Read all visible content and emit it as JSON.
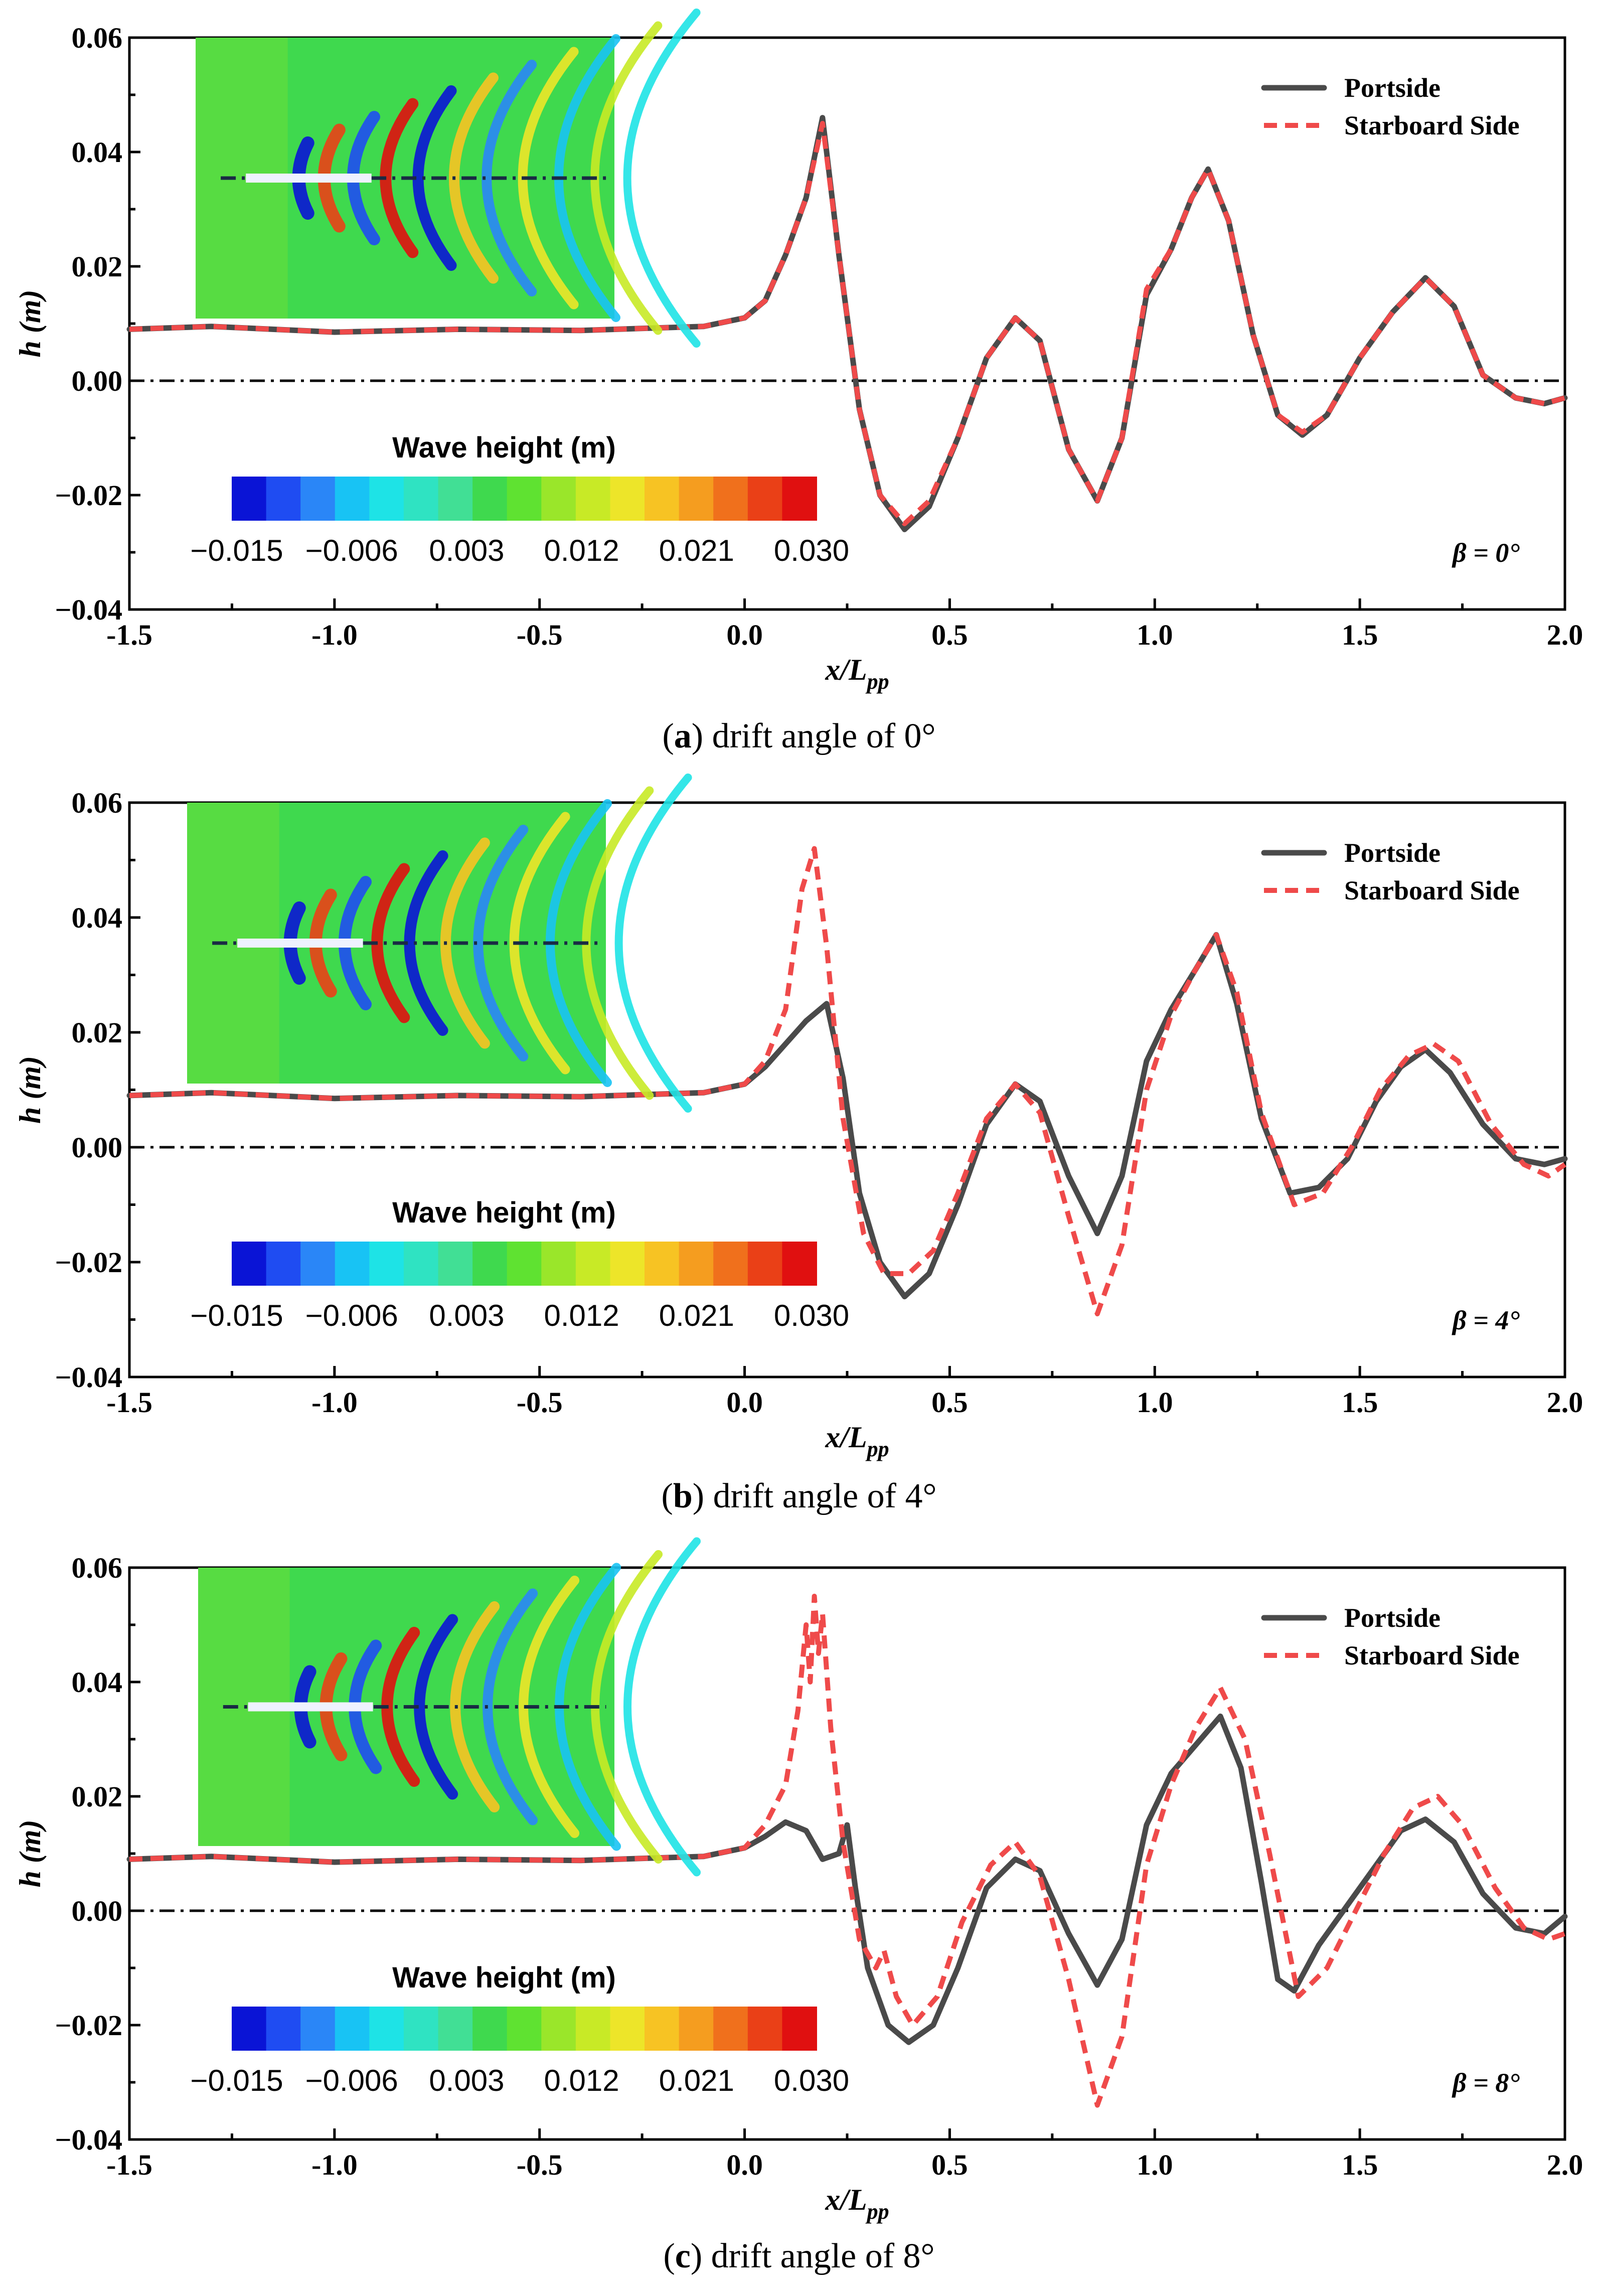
{
  "colors": {
    "portside": "#4a4a4a",
    "starboard": "#ef4a4a",
    "inset_background": "#3fd94e"
  },
  "colorbar": {
    "title": "Wave height (m)",
    "tick_labels": [
      "−0.015",
      "−0.006",
      "0.003",
      "0.012",
      "0.021",
      "0.030"
    ],
    "colors": [
      "#0a14d6",
      "#1f4cf2",
      "#2a86f7",
      "#18c3f4",
      "#1ee3e6",
      "#2fe3c2",
      "#41df95",
      "#3fd94e",
      "#5fe231",
      "#9ae62a",
      "#c8ea26",
      "#ede529",
      "#f7c323",
      "#f59d1f",
      "#f0701c",
      "#ea4017",
      "#e01010"
    ]
  },
  "chart_data": [
    {
      "type": "line",
      "panel": "a",
      "caption_letter": "a",
      "caption_text": " drift angle of 0°",
      "beta_label": "β = 0°",
      "xlabel": "x/L",
      "xlabel_sub": "pp",
      "ylabel": "h (m)",
      "xlim": [
        -1.5,
        2.0
      ],
      "ylim": [
        -0.04,
        0.06
      ],
      "xticks": [
        -1.5,
        -1.0,
        -0.5,
        0.0,
        0.5,
        1.0,
        1.5,
        2.0
      ],
      "xtick_labels": [
        "-1.5",
        "-1.0",
        "-0.5",
        "0.0",
        "0.5",
        "1.0",
        "1.5",
        "2.0"
      ],
      "yticks": [
        -0.04,
        -0.02,
        0.0,
        0.02,
        0.04,
        0.06
      ],
      "ytick_labels": [
        "−0.04",
        "−0.02",
        "0.00",
        "0.02",
        "0.04",
        "0.06"
      ],
      "legend": [
        "Portside",
        "Starboard Side"
      ],
      "series": [
        {
          "name": "Portside",
          "x": [
            -1.5,
            -1.3,
            -1.0,
            -0.7,
            -0.4,
            -0.1,
            0.0,
            0.05,
            0.1,
            0.15,
            0.19,
            0.23,
            0.28,
            0.33,
            0.39,
            0.45,
            0.52,
            0.59,
            0.66,
            0.72,
            0.79,
            0.86,
            0.92,
            0.98,
            1.04,
            1.09,
            1.13,
            1.18,
            1.24,
            1.3,
            1.36,
            1.42,
            1.5,
            1.58,
            1.66,
            1.73,
            1.8,
            1.88,
            1.95,
            2.0
          ],
          "y": [
            0.009,
            0.0095,
            0.0085,
            0.009,
            0.0088,
            0.0095,
            0.011,
            0.014,
            0.022,
            0.032,
            0.046,
            0.022,
            -0.005,
            -0.02,
            -0.026,
            -0.022,
            -0.01,
            0.004,
            0.011,
            0.007,
            -0.012,
            -0.021,
            -0.01,
            0.015,
            0.023,
            0.032,
            0.037,
            0.028,
            0.008,
            -0.006,
            -0.0095,
            -0.006,
            0.004,
            0.012,
            0.018,
            0.013,
            0.001,
            -0.003,
            -0.004,
            -0.003
          ]
        },
        {
          "name": "Starboard Side",
          "x": [
            -1.5,
            -1.3,
            -1.0,
            -0.7,
            -0.4,
            -0.1,
            0.0,
            0.05,
            0.1,
            0.15,
            0.19,
            0.23,
            0.28,
            0.33,
            0.39,
            0.45,
            0.52,
            0.59,
            0.66,
            0.72,
            0.79,
            0.86,
            0.92,
            0.98,
            1.04,
            1.09,
            1.13,
            1.18,
            1.24,
            1.3,
            1.36,
            1.42,
            1.5,
            1.58,
            1.66,
            1.73,
            1.8,
            1.88,
            1.95,
            2.0
          ],
          "y": [
            0.009,
            0.0095,
            0.0085,
            0.009,
            0.0088,
            0.0095,
            0.011,
            0.014,
            0.022,
            0.032,
            0.045,
            0.022,
            -0.005,
            -0.02,
            -0.025,
            -0.021,
            -0.01,
            0.004,
            0.011,
            0.007,
            -0.012,
            -0.021,
            -0.01,
            0.016,
            0.023,
            0.032,
            0.037,
            0.028,
            0.008,
            -0.006,
            -0.009,
            -0.006,
            0.004,
            0.012,
            0.018,
            0.013,
            0.001,
            -0.003,
            -0.004,
            -0.003
          ]
        }
      ]
    },
    {
      "type": "line",
      "panel": "b",
      "caption_letter": "b",
      "caption_text": " drift angle of 4°",
      "beta_label": "β = 4°",
      "xlabel": "x/L",
      "xlabel_sub": "pp",
      "ylabel": "h (m)",
      "xlim": [
        -1.5,
        2.0
      ],
      "ylim": [
        -0.04,
        0.06
      ],
      "xticks": [
        -1.5,
        -1.0,
        -0.5,
        0.0,
        0.5,
        1.0,
        1.5,
        2.0
      ],
      "xtick_labels": [
        "-1.5",
        "-1.0",
        "-0.5",
        "0.0",
        "0.5",
        "1.0",
        "1.5",
        "2.0"
      ],
      "yticks": [
        -0.04,
        -0.02,
        0.0,
        0.02,
        0.04,
        0.06
      ],
      "ytick_labels": [
        "−0.04",
        "−0.02",
        "0.00",
        "0.02",
        "0.04",
        "0.06"
      ],
      "legend": [
        "Portside",
        "Starboard Side"
      ],
      "series": [
        {
          "name": "Portside",
          "x": [
            -1.5,
            -1.3,
            -1.0,
            -0.7,
            -0.4,
            -0.1,
            0.0,
            0.05,
            0.1,
            0.15,
            0.2,
            0.24,
            0.28,
            0.33,
            0.39,
            0.45,
            0.52,
            0.59,
            0.66,
            0.72,
            0.79,
            0.86,
            0.92,
            0.98,
            1.04,
            1.1,
            1.15,
            1.2,
            1.26,
            1.33,
            1.4,
            1.47,
            1.54,
            1.6,
            1.66,
            1.72,
            1.8,
            1.88,
            1.95,
            2.0
          ],
          "y": [
            0.009,
            0.0095,
            0.0085,
            0.009,
            0.0088,
            0.0095,
            0.011,
            0.014,
            0.018,
            0.022,
            0.025,
            0.012,
            -0.008,
            -0.02,
            -0.026,
            -0.022,
            -0.01,
            0.004,
            0.011,
            0.008,
            -0.005,
            -0.015,
            -0.005,
            0.015,
            0.024,
            0.031,
            0.037,
            0.025,
            0.005,
            -0.008,
            -0.007,
            -0.002,
            0.008,
            0.014,
            0.017,
            0.013,
            0.004,
            -0.002,
            -0.003,
            -0.002
          ]
        },
        {
          "name": "Starboard Side",
          "x": [
            -1.5,
            -1.3,
            -1.0,
            -0.7,
            -0.4,
            -0.1,
            0.0,
            0.05,
            0.1,
            0.14,
            0.17,
            0.2,
            0.24,
            0.29,
            0.34,
            0.4,
            0.46,
            0.52,
            0.59,
            0.66,
            0.72,
            0.79,
            0.86,
            0.92,
            0.98,
            1.04,
            1.1,
            1.15,
            1.2,
            1.26,
            1.34,
            1.41,
            1.48,
            1.55,
            1.62,
            1.68,
            1.74,
            1.82,
            1.9,
            1.96,
            2.0
          ],
          "y": [
            0.009,
            0.0095,
            0.0085,
            0.009,
            0.0088,
            0.0095,
            0.011,
            0.015,
            0.024,
            0.045,
            0.052,
            0.035,
            0.005,
            -0.015,
            -0.022,
            -0.022,
            -0.018,
            -0.008,
            0.005,
            0.011,
            0.006,
            -0.012,
            -0.029,
            -0.017,
            0.01,
            0.023,
            0.031,
            0.037,
            0.027,
            0.006,
            -0.01,
            -0.008,
            0.0,
            0.01,
            0.016,
            0.018,
            0.015,
            0.004,
            -0.003,
            -0.005,
            -0.003
          ]
        }
      ]
    },
    {
      "type": "line",
      "panel": "c",
      "caption_letter": "c",
      "caption_text": " drift angle of 8°",
      "beta_label": "β = 8°",
      "xlabel": "x/L",
      "xlabel_sub": "pp",
      "ylabel": "h (m)",
      "xlim": [
        -1.5,
        2.0
      ],
      "ylim": [
        -0.04,
        0.06
      ],
      "xticks": [
        -1.5,
        -1.0,
        -0.5,
        0.0,
        0.5,
        1.0,
        1.5,
        2.0
      ],
      "xtick_labels": [
        "-1.5",
        "-1.0",
        "-0.5",
        "0.0",
        "0.5",
        "1.0",
        "1.5",
        "2.0"
      ],
      "yticks": [
        -0.04,
        -0.02,
        0.0,
        0.02,
        0.04,
        0.06
      ],
      "ytick_labels": [
        "−0.04",
        "−0.02",
        "0.00",
        "0.02",
        "0.04",
        "0.06"
      ],
      "legend": [
        "Portside",
        "Starboard Side"
      ],
      "series": [
        {
          "name": "Portside",
          "x": [
            -1.5,
            -1.3,
            -1.0,
            -0.7,
            -0.4,
            -0.1,
            0.0,
            0.05,
            0.1,
            0.15,
            0.19,
            0.23,
            0.25,
            0.27,
            0.3,
            0.35,
            0.4,
            0.46,
            0.52,
            0.59,
            0.66,
            0.72,
            0.79,
            0.86,
            0.92,
            0.98,
            1.04,
            1.1,
            1.16,
            1.21,
            1.26,
            1.3,
            1.34,
            1.4,
            1.47,
            1.54,
            1.6,
            1.66,
            1.73,
            1.8,
            1.88,
            1.95,
            2.0
          ],
          "y": [
            0.009,
            0.0095,
            0.0085,
            0.009,
            0.0088,
            0.0095,
            0.011,
            0.013,
            0.0155,
            0.014,
            0.009,
            0.01,
            0.015,
            0.004,
            -0.01,
            -0.02,
            -0.023,
            -0.02,
            -0.01,
            0.004,
            0.009,
            0.007,
            -0.004,
            -0.013,
            -0.005,
            0.015,
            0.024,
            0.029,
            0.034,
            0.025,
            0.005,
            -0.012,
            -0.014,
            -0.006,
            0.001,
            0.008,
            0.014,
            0.016,
            0.012,
            0.003,
            -0.003,
            -0.004,
            -0.001
          ]
        },
        {
          "name": "Starboard Side",
          "x": [
            -1.5,
            -1.3,
            -1.0,
            -0.7,
            -0.4,
            -0.1,
            0.0,
            0.05,
            0.1,
            0.13,
            0.15,
            0.16,
            0.17,
            0.18,
            0.19,
            0.21,
            0.24,
            0.28,
            0.32,
            0.34,
            0.37,
            0.41,
            0.47,
            0.53,
            0.6,
            0.66,
            0.72,
            0.79,
            0.86,
            0.92,
            0.98,
            1.04,
            1.1,
            1.16,
            1.22,
            1.28,
            1.35,
            1.42,
            1.49,
            1.56,
            1.63,
            1.69,
            1.75,
            1.83,
            1.9,
            1.96,
            2.0
          ],
          "y": [
            0.009,
            0.0095,
            0.0085,
            0.009,
            0.0088,
            0.0095,
            0.011,
            0.015,
            0.022,
            0.035,
            0.05,
            0.04,
            0.055,
            0.045,
            0.052,
            0.032,
            0.012,
            -0.005,
            -0.01,
            -0.007,
            -0.015,
            -0.02,
            -0.015,
            -0.002,
            0.008,
            0.012,
            0.006,
            -0.012,
            -0.034,
            -0.022,
            0.008,
            0.022,
            0.032,
            0.039,
            0.03,
            0.01,
            -0.015,
            -0.01,
            0.0,
            0.01,
            0.018,
            0.02,
            0.015,
            0.004,
            -0.003,
            -0.005,
            -0.004
          ]
        }
      ]
    }
  ]
}
